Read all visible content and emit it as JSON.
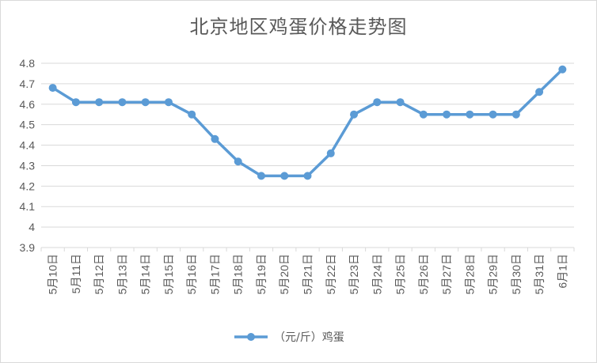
{
  "chart_data": {
    "type": "line",
    "title": "北京地区鸡蛋价格走势图",
    "categories": [
      "5月10日",
      "5月11日",
      "5月12日",
      "5月13日",
      "5月14日",
      "5月15日",
      "5月16日",
      "5月17日",
      "5月18日",
      "5月19日",
      "5月20日",
      "5月21日",
      "5月22日",
      "5月23日",
      "5月24日",
      "5月25日",
      "5月26日",
      "5月27日",
      "5月28日",
      "5月29日",
      "5月30日",
      "5月31日",
      "6月1日"
    ],
    "series": [
      {
        "name": "（元/斤）鸡蛋",
        "values": [
          4.68,
          4.61,
          4.61,
          4.61,
          4.61,
          4.61,
          4.55,
          4.43,
          4.32,
          4.25,
          4.25,
          4.25,
          4.36,
          4.55,
          4.61,
          4.61,
          4.55,
          4.55,
          4.55,
          4.55,
          4.55,
          4.66,
          4.77
        ]
      }
    ],
    "xlabel": "",
    "ylabel": "",
    "ylim": [
      3.9,
      4.8
    ],
    "yticks": [
      "3.9",
      "4",
      "4.1",
      "4.2",
      "4.3",
      "4.4",
      "4.5",
      "4.6",
      "4.7",
      "4.8"
    ],
    "grid": true,
    "legend_position": "bottom",
    "line_color": "#5b9bd5",
    "grid_color": "#d9d9d9"
  }
}
